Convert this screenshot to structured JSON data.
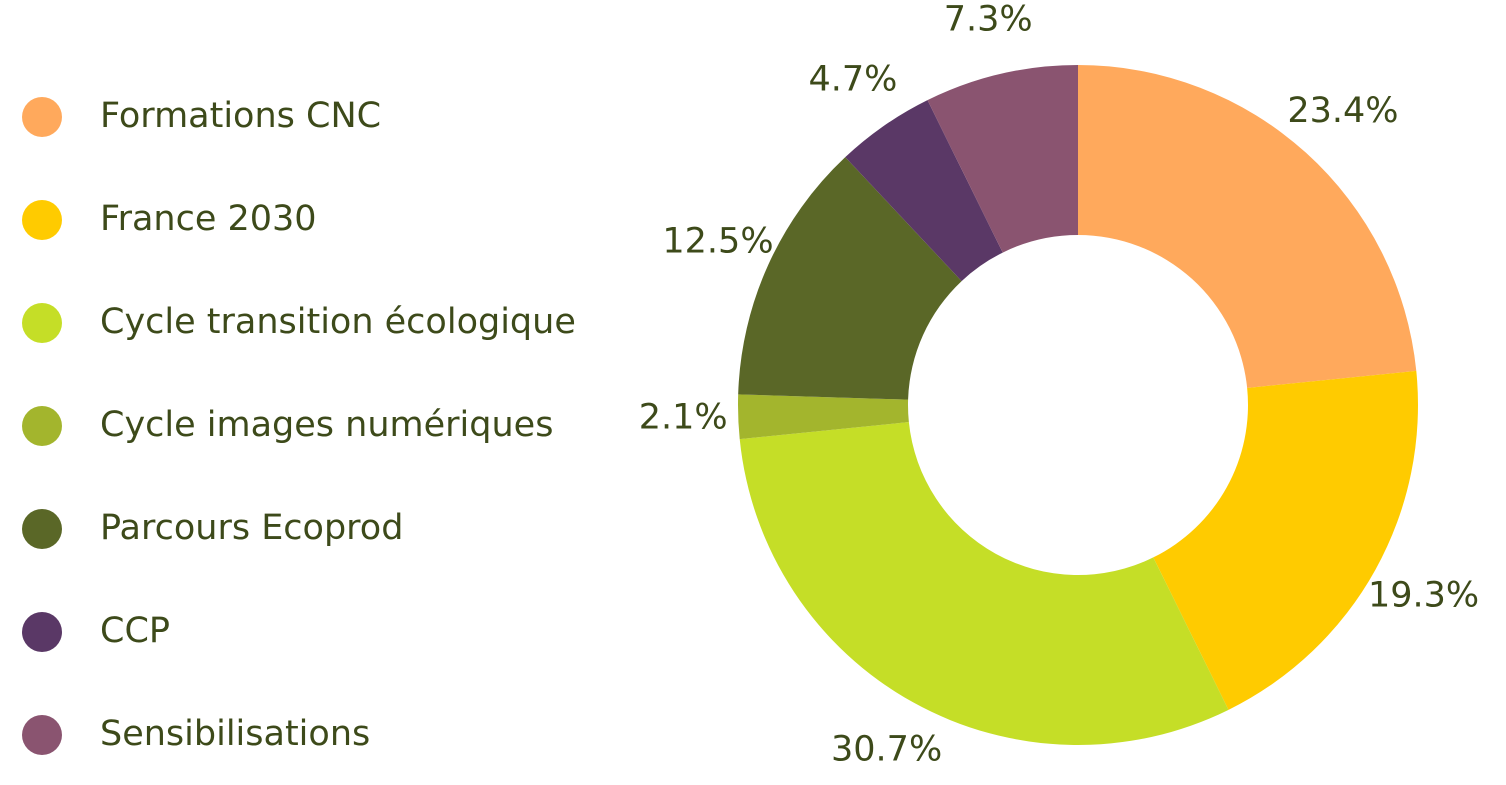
{
  "chart_data": {
    "type": "donut",
    "categories": [
      "Formations CNC",
      "France 2030",
      "Cycle transition écologique",
      "Cycle images numériques",
      "Parcours Ecoprod",
      "CCP",
      "Sensibilisations"
    ],
    "values": [
      23.4,
      19.3,
      30.7,
      2.1,
      12.5,
      4.7,
      7.3
    ],
    "value_labels": [
      "23.4%",
      "19.3%",
      "30.7%",
      "2.1%",
      "12.5%",
      "4.7%",
      "7.3%"
    ],
    "colors": [
      "#ffa95c",
      "#ffcb00",
      "#c5de27",
      "#a3b52d",
      "#5a6727",
      "#5a3866",
      "#8a5470"
    ]
  }
}
